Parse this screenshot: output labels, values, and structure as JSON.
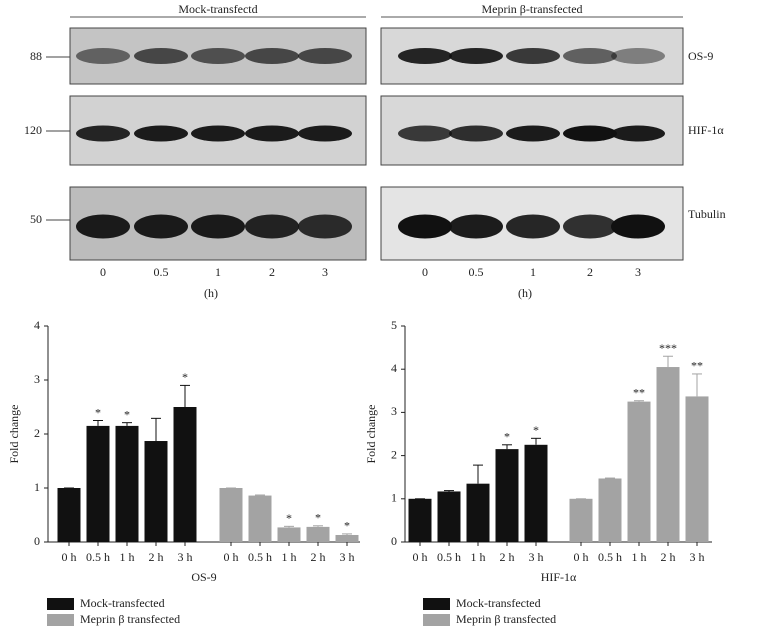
{
  "blot": {
    "groups": [
      "Mock-transfectd",
      "Meprin β-transfected"
    ],
    "markers": [
      "88",
      "120",
      "50"
    ],
    "proteins": [
      "OS-9",
      "HIF-1α",
      "Tubulin"
    ],
    "lanes": [
      "0",
      "0.5",
      "1",
      "2",
      "3"
    ],
    "unit": "(h)"
  },
  "chart_data": [
    {
      "type": "bar",
      "xlabel": "OS-9",
      "ylabel": "Fold change",
      "categories": [
        "0 h",
        "0.5 h",
        "1 h",
        "2 h",
        "3 h"
      ],
      "ylim": [
        0,
        4
      ],
      "yticks": [
        0,
        1,
        2,
        3,
        4
      ],
      "series": [
        {
          "name": "Mock-transfected",
          "color": "#111111",
          "values": [
            1.0,
            2.15,
            2.15,
            1.87,
            2.5
          ],
          "errors": [
            0,
            0.1,
            0.06,
            0.42,
            0.4
          ],
          "annotations": [
            null,
            "*",
            "*",
            null,
            "*"
          ]
        },
        {
          "name": "Meprin β transfected",
          "color": "#a3a3a3",
          "values": [
            1.0,
            0.86,
            0.27,
            0.28,
            0.13
          ],
          "errors": [
            0,
            0.01,
            0.02,
            0.02,
            0.02
          ],
          "annotations": [
            null,
            null,
            "*",
            "*",
            "*"
          ]
        }
      ]
    },
    {
      "type": "bar",
      "xlabel": "HIF-1α",
      "ylabel": "Fold change",
      "categories": [
        "0 h",
        "0.5 h",
        "1 h",
        "2 h",
        "3 h"
      ],
      "ylim": [
        0,
        5
      ],
      "yticks": [
        0,
        1,
        2,
        3,
        4,
        5
      ],
      "series": [
        {
          "name": "Mock-transfected",
          "color": "#111111",
          "values": [
            1.0,
            1.17,
            1.35,
            2.15,
            2.25
          ],
          "errors": [
            0,
            0.02,
            0.43,
            0.1,
            0.15
          ],
          "annotations": [
            null,
            null,
            null,
            "*",
            "*"
          ]
        },
        {
          "name": "Meprin β transfected",
          "color": "#a3a3a3",
          "values": [
            1.0,
            1.47,
            3.25,
            4.05,
            3.37
          ],
          "errors": [
            0,
            0.01,
            0.02,
            0.25,
            0.52
          ],
          "annotations": [
            null,
            null,
            "**",
            "***",
            "**"
          ]
        }
      ]
    }
  ]
}
